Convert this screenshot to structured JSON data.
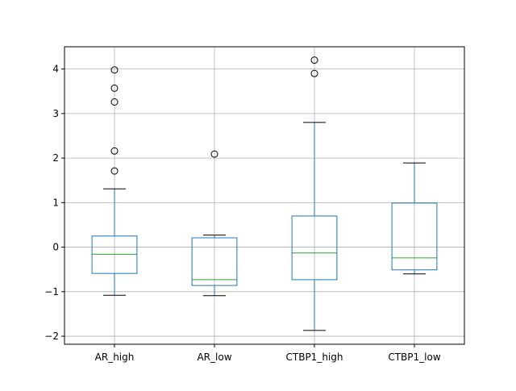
{
  "chart_data": {
    "type": "box",
    "categories": [
      "AR_high",
      "AR_low",
      "CTBP1_high",
      "CTBP1_low"
    ],
    "boxes": [
      {
        "whisker_low": -1.08,
        "q1": -0.59,
        "median": -0.16,
        "q3": 0.25,
        "whisker_high": 1.31,
        "outliers": [
          1.71,
          2.16,
          3.26,
          3.57,
          3.98
        ]
      },
      {
        "whisker_low": -1.09,
        "q1": -0.86,
        "median": -0.73,
        "q3": 0.21,
        "whisker_high": 0.27,
        "outliers": [
          2.09
        ]
      },
      {
        "whisker_low": -1.87,
        "q1": -0.73,
        "median": -0.13,
        "q3": 0.7,
        "whisker_high": 2.8,
        "outliers": [
          3.9,
          4.2
        ]
      },
      {
        "whisker_low": -0.6,
        "q1": -0.51,
        "median": -0.24,
        "q3": 0.99,
        "whisker_high": 1.89,
        "outliers": []
      }
    ],
    "y_ticks": [
      -2,
      -1,
      0,
      1,
      2,
      3,
      4
    ],
    "ylim": [
      -2.18,
      4.5
    ],
    "grid": true,
    "colors": {
      "box": "#1f77b4",
      "median": "#2ca02c",
      "whisker": "#000000",
      "grid": "#b0b0b0"
    }
  }
}
